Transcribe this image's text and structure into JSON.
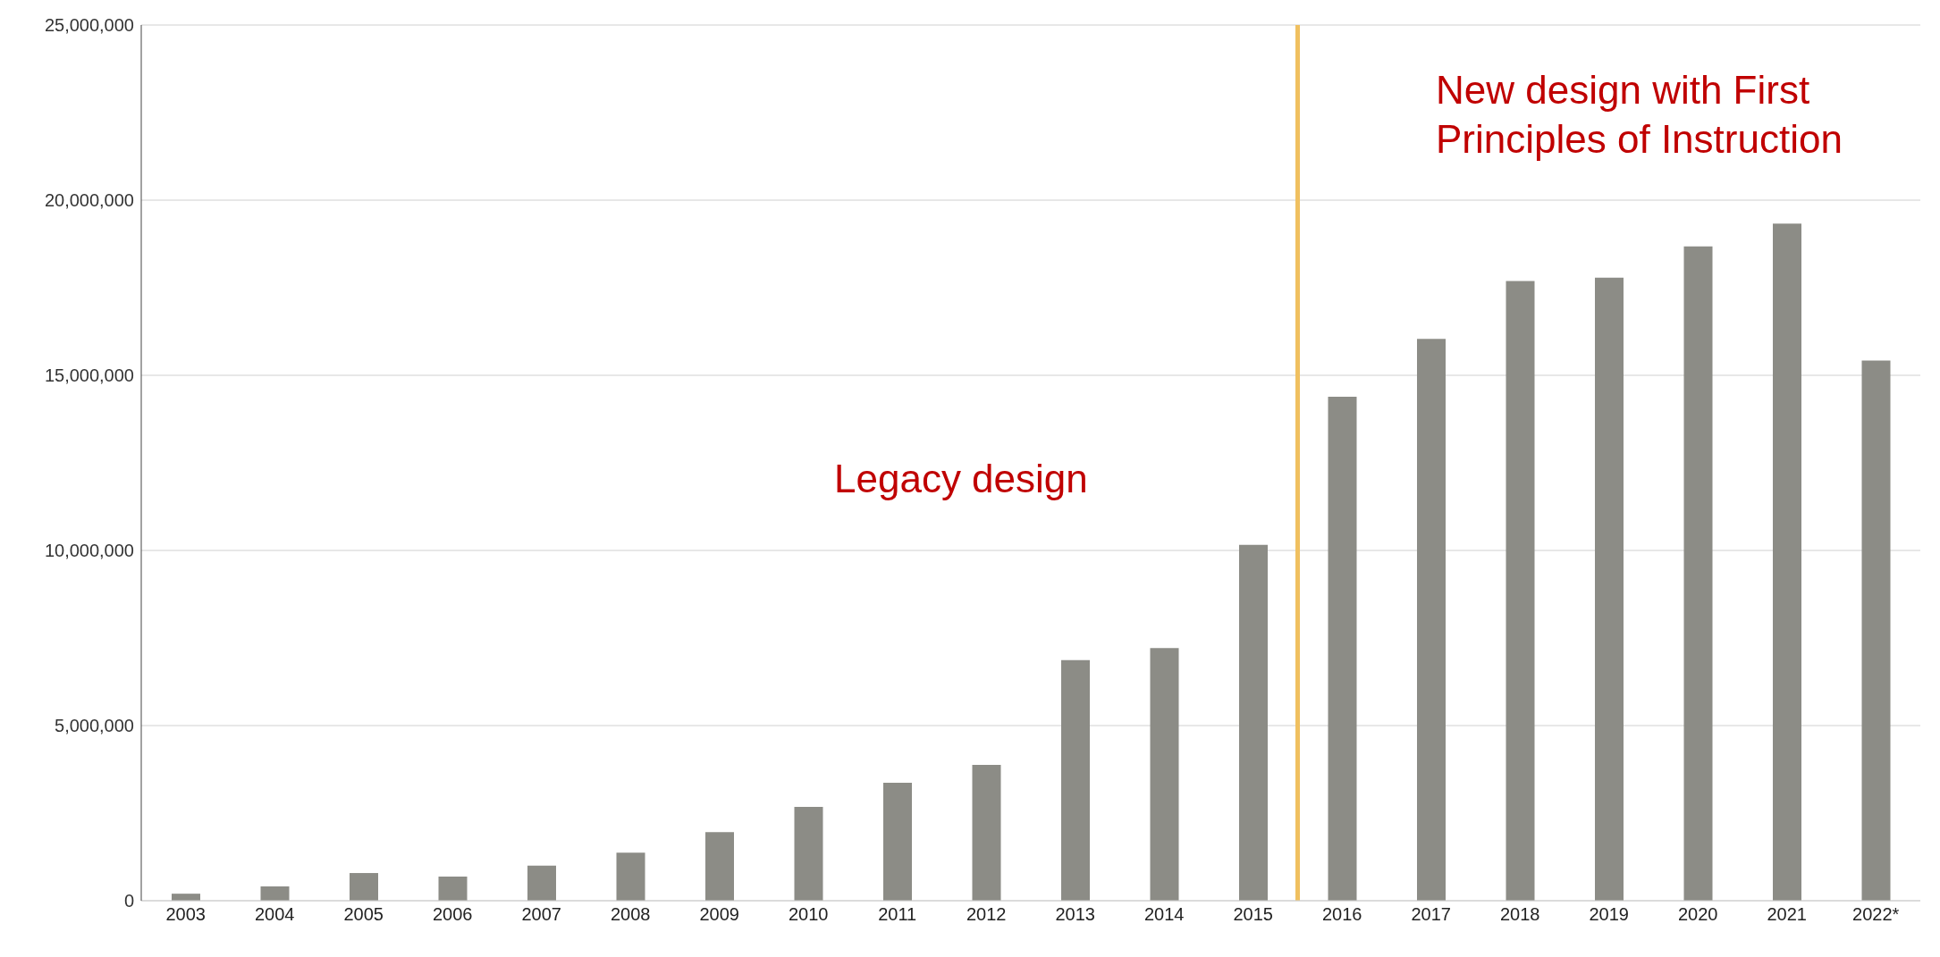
{
  "chart_data": {
    "type": "bar",
    "x": [
      2003,
      2004,
      2005,
      2006,
      2007,
      2008,
      2009,
      2010,
      2011,
      2012,
      2013,
      2014,
      2015,
      2016,
      2017,
      2018,
      2019,
      2020,
      2021,
      2022
    ],
    "values": [
      200000,
      410000,
      790000,
      690000,
      1000000,
      1370000,
      1960000,
      2680000,
      3370000,
      3880000,
      6870000,
      7210000,
      10160000,
      14390000,
      16040000,
      17690000,
      17790000,
      18680000,
      19330000,
      15420000
    ],
    "color": "#8c8c86",
    "xlim": [
      2002.5,
      2022.5
    ],
    "xticks": [
      2003,
      2004,
      2005,
      2006,
      2007,
      2008,
      2009,
      2010,
      2011,
      2012,
      2013,
      2014,
      2015,
      2016,
      2017,
      2018,
      2019,
      2020,
      2021,
      {
        "value": 2022,
        "label": "2022*"
      }
    ],
    "ylim": [
      0,
      25000000
    ],
    "yticks": [
      0,
      {
        "value": 5000000,
        "label": "5,000,000"
      },
      {
        "value": 10000000,
        "label": "10,000,000"
      },
      {
        "value": 15000000,
        "label": "15,000,000"
      },
      {
        "value": 20000000,
        "label": "20,000,000"
      },
      {
        "value": 25000000,
        "label": "25,000,000"
      }
    ],
    "grid": "y",
    "ref_lines": [
      {
        "axis": "x",
        "value": 2015.5,
        "color": "#f0c060"
      }
    ],
    "annotations": [
      "Legacy design",
      "New design with First Principles of Instruction"
    ]
  }
}
